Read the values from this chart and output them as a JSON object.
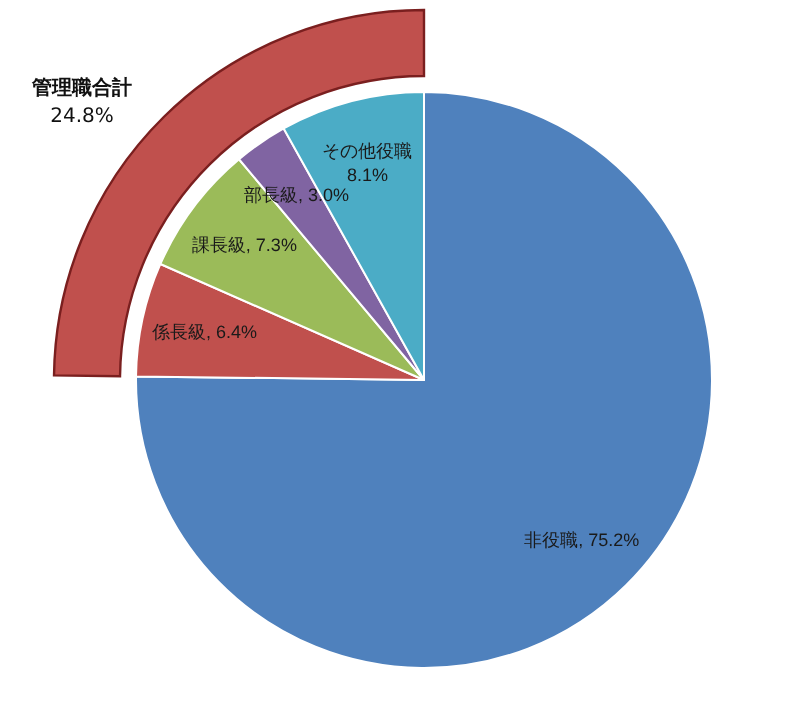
{
  "chart_data": {
    "type": "pie",
    "categories": [
      "非役職",
      "係長級",
      "課長級",
      "部長級",
      "その他役職"
    ],
    "values": [
      75.2,
      6.4,
      7.3,
      3.0,
      8.1
    ],
    "colors": [
      "#4f81bd",
      "#c0504d",
      "#9bbb59",
      "#8064a2",
      "#4bacc6"
    ],
    "value_labels": [
      "75.2%",
      "6.4%",
      "7.3%",
      "3.0%",
      "8.1%"
    ],
    "annotations": [
      "管理職合計\n24.8%"
    ],
    "legend": false
  }
}
